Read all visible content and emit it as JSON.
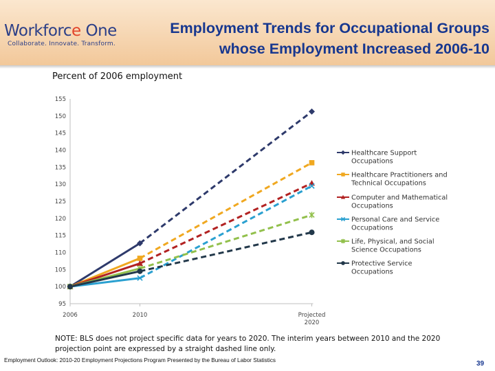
{
  "logo": {
    "prefix": "Workforc",
    "mark": "e",
    "suffix": " One",
    "tagline": "Collaborate.  Innovate.  Transform."
  },
  "title_line1": "Employment Trends for Occupational Groups",
  "title_line2": "whose Employment Increased 2006-10",
  "y_caption": "Percent of 2006 employment",
  "note": "NOTE:  BLS does not project specific data for years to 2020.  The interim years between 2010 and the 2020 projection point are expressed by a straight dashed line only.",
  "source": "Employment Outlook: 2010-20 Employment Projections Program Presented by the Bureau of Labor Statistics",
  "page_number": "39",
  "chart_data": {
    "type": "line",
    "categories": [
      "2006",
      "2010",
      "Projected 2020"
    ],
    "ylim": [
      95,
      155
    ],
    "yticks": [
      95,
      100,
      105,
      110,
      115,
      120,
      125,
      130,
      135,
      140,
      145,
      150,
      155
    ],
    "grid": false,
    "legend_position": "right",
    "note": "Segment 2006-2010 solid; 2010-Projected 2020 dashed",
    "series": [
      {
        "name": "Healthcare Support Occupations",
        "color": "#2e3a6b",
        "marker": "diamond",
        "values": [
          100,
          112.7,
          151.3
        ]
      },
      {
        "name": "Healthcare Practitioners and Technical Occupations",
        "color": "#f0a820",
        "marker": "square",
        "values": [
          100,
          108.3,
          136.3
        ]
      },
      {
        "name": "Computer and Mathematical Occupations",
        "color": "#b22222",
        "marker": "triangle",
        "values": [
          100,
          106.8,
          130.3
        ]
      },
      {
        "name": "Personal Care and Service Occupations",
        "color": "#2aa0d0",
        "marker": "x",
        "values": [
          100,
          102.5,
          129.5
        ]
      },
      {
        "name": "Life, Physical, and Social Science Occupations",
        "color": "#92c04c",
        "marker": "star",
        "values": [
          100,
          105.3,
          121.0
        ]
      },
      {
        "name": "Protective Service Occupations",
        "color": "#22384a",
        "marker": "circle",
        "values": [
          100,
          104.5,
          115.9
        ]
      }
    ]
  }
}
